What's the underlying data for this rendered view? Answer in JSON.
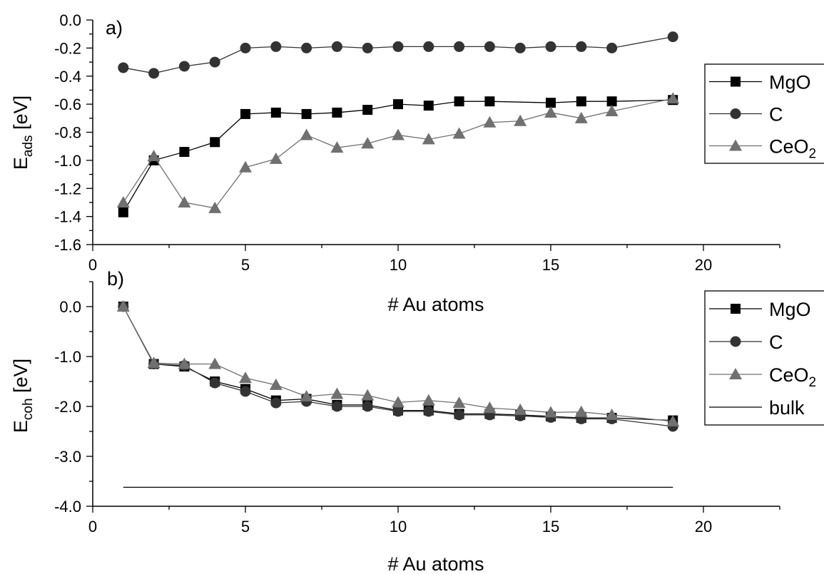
{
  "chart_data": [
    {
      "type": "line",
      "panel_label": "a)",
      "xlabel": "# Au atoms",
      "ylabel": "E",
      "ylabel_sub": "ads",
      "ylabel_unit": "[eV]",
      "xlim": [
        0,
        22.5
      ],
      "ylim": [
        -1.6,
        0.0
      ],
      "xticks": [
        0,
        5,
        10,
        15,
        20
      ],
      "xtick_labels": [
        "0",
        "5",
        "10",
        "15",
        "20"
      ],
      "yticks": [
        0.0,
        -0.2,
        -0.4,
        -0.6,
        -0.8,
        -1.0,
        -1.2,
        -1.4,
        -1.6
      ],
      "ytick_labels": [
        "0.0",
        "-0.2",
        "-0.4",
        "-0.6",
        "-0.8",
        "-1.0",
        "-1.2",
        "-1.4",
        "-1.6"
      ],
      "legend_position": "right",
      "series": [
        {
          "name": "MgO",
          "marker": "square",
          "color": "#000000",
          "x": [
            1,
            2,
            3,
            4,
            5,
            6,
            7,
            8,
            9,
            10,
            11,
            12,
            13,
            15,
            16,
            17,
            19
          ],
          "y": [
            -1.37,
            -1.0,
            -0.94,
            -0.87,
            -0.67,
            -0.66,
            -0.67,
            -0.66,
            -0.64,
            -0.6,
            -0.61,
            -0.58,
            -0.58,
            -0.59,
            -0.58,
            -0.58,
            -0.57
          ]
        },
        {
          "name": "C",
          "marker": "circle",
          "color": "#333333",
          "x": [
            1,
            2,
            3,
            4,
            5,
            6,
            7,
            8,
            9,
            10,
            11,
            12,
            13,
            14,
            15,
            16,
            17,
            19
          ],
          "y": [
            -0.34,
            -0.38,
            -0.33,
            -0.3,
            -0.2,
            -0.19,
            -0.2,
            -0.19,
            -0.2,
            -0.19,
            -0.19,
            -0.19,
            -0.19,
            -0.2,
            -0.19,
            -0.19,
            -0.2,
            -0.12
          ]
        },
        {
          "name": "CeO",
          "name_sub": "2",
          "marker": "triangle",
          "color": "#707070",
          "x": [
            1,
            2,
            3,
            4,
            5,
            6,
            7,
            8,
            9,
            10,
            11,
            12,
            13,
            14,
            15,
            16,
            17,
            19
          ],
          "y": [
            -1.3,
            -0.97,
            -1.3,
            -1.34,
            -1.05,
            -0.99,
            -0.82,
            -0.91,
            -0.88,
            -0.82,
            -0.85,
            -0.81,
            -0.73,
            -0.72,
            -0.66,
            -0.7,
            -0.65,
            -0.56
          ]
        }
      ]
    },
    {
      "type": "line",
      "panel_label": "b)",
      "xlabel": "# Au atoms",
      "ylabel": "E",
      "ylabel_sub": "coh",
      "ylabel_unit": "[eV]",
      "xlim": [
        0,
        22.5
      ],
      "ylim": [
        -4.0,
        0.5
      ],
      "xticks": [
        0,
        5,
        10,
        15,
        20
      ],
      "xtick_labels": [
        "0",
        "5",
        "10",
        "15",
        "20"
      ],
      "yticks": [
        0.0,
        -1.0,
        -2.0,
        -3.0,
        -4.0
      ],
      "ytick_labels": [
        "0.0",
        "-1.0",
        "-2.0",
        "-3.0",
        "-4.0"
      ],
      "legend_position": "right",
      "series": [
        {
          "name": "MgO",
          "marker": "square",
          "color": "#000000",
          "x": [
            1,
            2,
            3,
            4,
            5,
            6,
            7,
            8,
            9,
            10,
            11,
            12,
            13,
            14,
            15,
            16,
            17,
            19
          ],
          "y": [
            0.0,
            -1.15,
            -1.2,
            -1.5,
            -1.65,
            -1.88,
            -1.85,
            -1.97,
            -1.97,
            -2.08,
            -2.08,
            -2.15,
            -2.15,
            -2.17,
            -2.2,
            -2.23,
            -2.23,
            -2.28
          ]
        },
        {
          "name": "C",
          "marker": "circle",
          "color": "#333333",
          "x": [
            1,
            2,
            3,
            4,
            5,
            6,
            7,
            8,
            9,
            10,
            11,
            12,
            13,
            14,
            15,
            16,
            17,
            19
          ],
          "y": [
            0.0,
            -1.15,
            -1.18,
            -1.53,
            -1.7,
            -1.93,
            -1.9,
            -2.0,
            -2.0,
            -2.1,
            -2.1,
            -2.17,
            -2.17,
            -2.19,
            -2.22,
            -2.25,
            -2.25,
            -2.4
          ]
        },
        {
          "name": "CeO",
          "name_sub": "2",
          "marker": "triangle",
          "color": "#707070",
          "x": [
            1,
            2,
            3,
            4,
            5,
            6,
            7,
            8,
            9,
            10,
            11,
            12,
            13,
            14,
            15,
            16,
            17,
            19
          ],
          "y": [
            0.0,
            -1.13,
            -1.15,
            -1.15,
            -1.43,
            -1.57,
            -1.8,
            -1.75,
            -1.78,
            -1.92,
            -1.88,
            -1.93,
            -2.03,
            -2.07,
            -2.12,
            -2.11,
            -2.17,
            -2.3
          ]
        },
        {
          "name": "bulk",
          "marker": "none",
          "color": "#000000",
          "x": [
            1,
            19
          ],
          "y": [
            -3.62,
            -3.62
          ]
        }
      ]
    }
  ]
}
